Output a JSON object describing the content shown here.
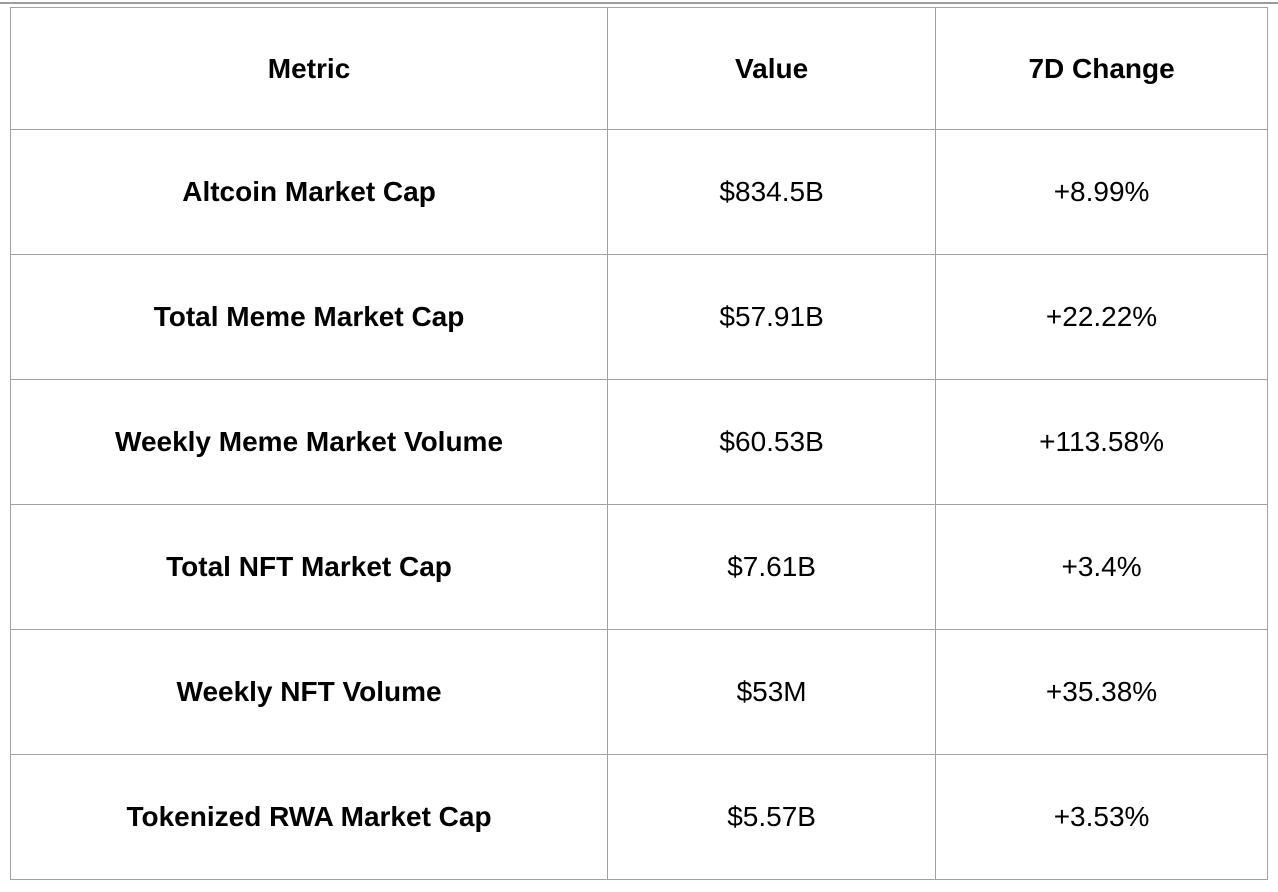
{
  "colors": {
    "border": "#a2a2a2",
    "text": "#000000",
    "background": "#ffffff"
  },
  "chart_data": {
    "type": "table",
    "title": "",
    "columns": [
      "Metric",
      "Value",
      "7D Change"
    ],
    "rows": [
      {
        "metric": "Altcoin Market Cap",
        "value": "$834.5B",
        "change": "+8.99%"
      },
      {
        "metric": "Total Meme Market Cap",
        "value": "$57.91B",
        "change": "+22.22%"
      },
      {
        "metric": "Weekly Meme Market Volume",
        "value": "$60.53B",
        "change": "+113.58%"
      },
      {
        "metric": "Total NFT Market Cap",
        "value": "$7.61B",
        "change": "+3.4%"
      },
      {
        "metric": "Weekly NFT Volume",
        "value": "$53M",
        "change": "+35.38%"
      },
      {
        "metric": "Tokenized RWA Market Cap",
        "value": "$5.57B",
        "change": "+3.53%"
      }
    ],
    "numeric_values_usd_billions": {
      "altcoin_market_cap": 834.5,
      "total_meme_market_cap": 57.91,
      "weekly_meme_market_volume": 60.53,
      "total_nft_market_cap": 7.61,
      "weekly_nft_volume": 0.053,
      "tokenized_rwa_market_cap": 5.57
    },
    "change_percent_7d": {
      "altcoin_market_cap": 8.99,
      "total_meme_market_cap": 22.22,
      "weekly_meme_market_volume": 113.58,
      "total_nft_market_cap": 3.4,
      "weekly_nft_volume": 35.38,
      "tokenized_rwa_market_cap": 3.53
    }
  }
}
